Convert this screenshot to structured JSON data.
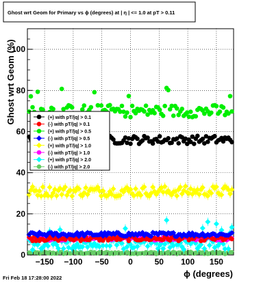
{
  "chart_data": {
    "type": "scatter",
    "title": "Ghost wrt Geom for Primary vs ϕ (degrees) at |   η | <= 1.0 at pT > 0.11",
    "xlabel": "ϕ (degrees)",
    "ylabel": "Ghost wrt Geom (%)",
    "xlim": [
      -180,
      180
    ],
    "ylim": [
      0,
      110
    ],
    "xticks": [
      -150,
      -100,
      -50,
      0,
      50,
      100,
      150
    ],
    "yticks": [
      0,
      20,
      40,
      60,
      80,
      100
    ],
    "xtick_labels": [
      "−150",
      "−100",
      "−50",
      "0",
      "50",
      "100",
      "150"
    ],
    "ytick_labels": [
      "0",
      "20",
      "40",
      "60",
      "80",
      "100"
    ],
    "grid": true,
    "legend_position": "left",
    "series": [
      {
        "name": "(+) with pT/|q| > 0.1",
        "color": "#000000",
        "marker": "circle",
        "level": 56,
        "spread": 2.0
      },
      {
        "name": "(-) with pT/|q| > 0.1",
        "color": "#ff0000",
        "marker": "circle",
        "level": 8,
        "spread": 1.2
      },
      {
        "name": "(+) with pT/|q| > 0.5",
        "color": "#00ee00",
        "marker": "circle",
        "level": 70,
        "spread": 3.0
      },
      {
        "name": "(-) with pT/|q| > 0.5",
        "color": "#0000ff",
        "marker": "diamond",
        "level": 10,
        "spread": 1.0
      },
      {
        "name": "(+) with pT/|q| > 1.0",
        "color": "#ffff00",
        "marker": "diamond",
        "level": 31,
        "spread": 2.5
      },
      {
        "name": "(-) with pT/|q| > 1.0",
        "color": "#ff00ff",
        "marker": "circle",
        "level": 8,
        "spread": 1.0
      },
      {
        "name": "(+) with pT/|q| > 2.0",
        "color": "#00ffff",
        "marker": "diamond",
        "level": 5,
        "spread": 2.5
      },
      {
        "name": "(-) with pT/|q| > 2.0",
        "color": "#66cc66",
        "marker": "circle",
        "level": 1,
        "spread": 0.5
      }
    ]
  },
  "footer": {
    "timestamp": "Fri Feb 18 17:28:00 2022"
  }
}
